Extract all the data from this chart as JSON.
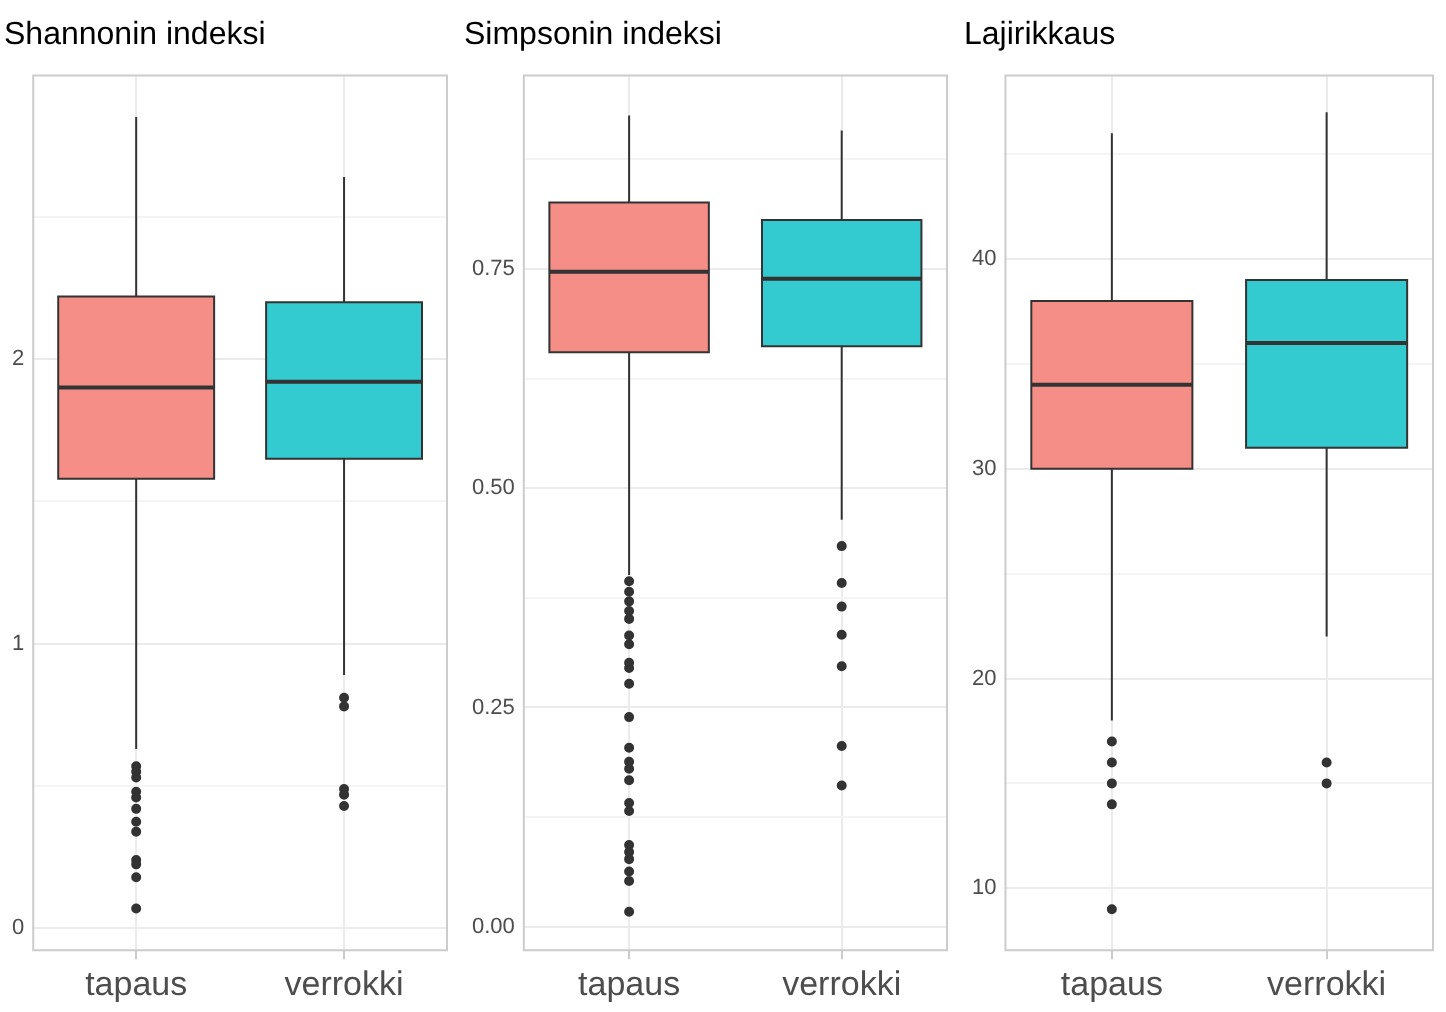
{
  "chart_data": [
    {
      "type": "box",
      "title": "Shannonin indeksi",
      "categories": [
        "tapaus",
        "verrokki"
      ],
      "colors": [
        "#f68e88",
        "#33cbcf"
      ],
      "boxes": [
        {
          "low": 0.63,
          "q1": 1.58,
          "median": 1.9,
          "q3": 2.22,
          "high": 2.85,
          "outliers": [
            0.57,
            0.55,
            0.53,
            0.48,
            0.46,
            0.42,
            0.375,
            0.34,
            0.24,
            0.225,
            0.18,
            0.07
          ]
        },
        {
          "low": 0.89,
          "q1": 1.65,
          "median": 1.92,
          "q3": 2.2,
          "high": 2.64,
          "outliers": [
            0.81,
            0.78,
            0.49,
            0.47,
            0.43
          ]
        }
      ],
      "ylim": [
        -0.08,
        3.0
      ],
      "yticks": [
        0,
        {
          "value": 0.5,
          "label": null
        },
        1,
        {
          "value": 1.5,
          "label": null
        },
        2,
        {
          "value": 2.5,
          "label": null
        }
      ],
      "grid": true
    },
    {
      "type": "box",
      "title": "Simpsonin indeksi",
      "categories": [
        "tapaus",
        "verrokki"
      ],
      "colors": [
        "#f68e88",
        "#33cbcf"
      ],
      "boxes": [
        {
          "low": 0.401,
          "q1": 0.655,
          "median": 0.747,
          "q3": 0.826,
          "high": 0.925,
          "outliers": [
            0.394,
            0.382,
            0.371,
            0.36,
            0.351,
            0.332,
            0.322,
            0.301,
            0.295,
            0.277,
            0.239,
            0.204,
            0.188,
            0.18,
            0.167,
            0.141,
            0.132,
            0.093,
            0.085,
            0.077,
            0.063,
            0.052,
            0.017
          ]
        },
        {
          "low": 0.464,
          "q1": 0.662,
          "median": 0.739,
          "q3": 0.806,
          "high": 0.908,
          "outliers": [
            0.434,
            0.392,
            0.365,
            0.333,
            0.297,
            0.206,
            0.161
          ]
        }
      ],
      "ylim": [
        -0.028,
        0.972
      ],
      "yticks": [
        {
          "value": 0,
          "label": "0.00"
        },
        {
          "value": 0.125,
          "label": null
        },
        {
          "value": 0.25,
          "label": "0.25"
        },
        {
          "value": 0.375,
          "label": null
        },
        {
          "value": 0.5,
          "label": "0.50"
        },
        {
          "value": 0.625,
          "label": null
        },
        {
          "value": 0.75,
          "label": "0.75"
        },
        {
          "value": 0.875,
          "label": null
        }
      ],
      "grid": true
    },
    {
      "type": "box",
      "title": "Lajirikkaus",
      "categories": [
        "tapaus",
        "verrokki"
      ],
      "colors": [
        "#f68e88",
        "#33cbcf"
      ],
      "boxes": [
        {
          "low": 18,
          "q1": 30,
          "median": 34,
          "q3": 38,
          "high": 46,
          "outliers": [
            17,
            16,
            15,
            14,
            9
          ]
        },
        {
          "low": 22,
          "q1": 31,
          "median": 36,
          "q3": 39,
          "high": 47,
          "outliers": [
            16,
            15
          ]
        }
      ],
      "ylim": [
        7,
        48.8
      ],
      "yticks": [
        10,
        {
          "value": 15,
          "label": null
        },
        20,
        {
          "value": 25,
          "label": null
        },
        30,
        {
          "value": 35,
          "label": null
        },
        40,
        {
          "value": 45,
          "label": null
        }
      ],
      "grid": true
    }
  ]
}
